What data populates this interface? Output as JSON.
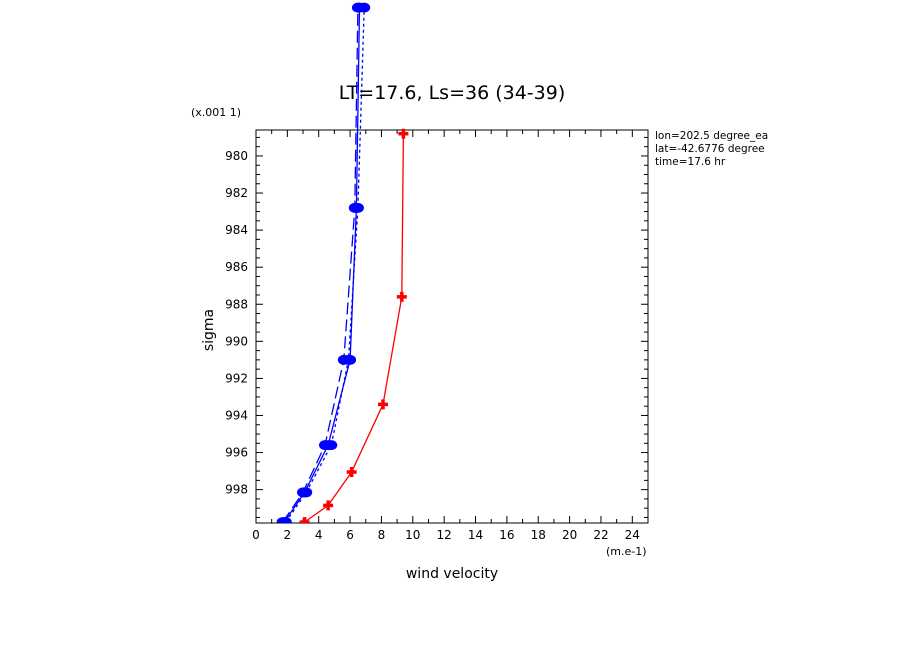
{
  "chart_data": {
    "type": "line",
    "title": "LT=17.6, Ls=36 (34-39)",
    "xlabel": "wind velocity",
    "ylabel": "sigma",
    "x_scale_label": "(m.e-1)",
    "y_scale_label": "(x.001 1)",
    "xlim": [
      0,
      25
    ],
    "ylim": [
      999.8,
      978.6
    ],
    "x_ticks": [
      "0",
      "2",
      "4",
      "6",
      "8",
      "10",
      "12",
      "14",
      "16",
      "18",
      "20",
      "22",
      "24"
    ],
    "y_ticks": [
      "980",
      "982",
      "984",
      "986",
      "988",
      "990",
      "992",
      "994",
      "996",
      "998"
    ],
    "annotations": [
      "lon=202.5 degree_ea",
      "lat=-42.6776 degree",
      "time=17.6 hr"
    ],
    "series": [
      {
        "color": "#0000ff",
        "style": "solid",
        "marker": "dot",
        "x": [
          1.8,
          3.1,
          4.6,
          6.0,
          6.4,
          6.6
        ],
        "y": [
          999.75,
          998.15,
          995.6,
          991.0,
          982.8,
          972.0
        ]
      },
      {
        "color": "#0000ff",
        "style": "dashed",
        "marker": "dot",
        "x": [
          1.7,
          3.0,
          4.4,
          5.6,
          6.3,
          6.5
        ],
        "y": [
          999.75,
          998.15,
          995.6,
          991.0,
          982.8,
          972.0
        ]
      },
      {
        "color": "#0000ff",
        "style": "dotted",
        "marker": "dot",
        "x": [
          1.9,
          3.2,
          4.8,
          5.9,
          6.5,
          6.9
        ],
        "y": [
          999.75,
          998.15,
          995.6,
          991.0,
          982.8,
          972.0
        ]
      },
      {
        "color": "#ff0000",
        "style": "solid",
        "marker": "cross",
        "x": [
          3.1,
          4.6,
          6.1,
          8.1,
          9.3,
          9.4
        ],
        "y": [
          999.75,
          998.85,
          997.05,
          993.4,
          987.6,
          978.8
        ]
      }
    ]
  }
}
